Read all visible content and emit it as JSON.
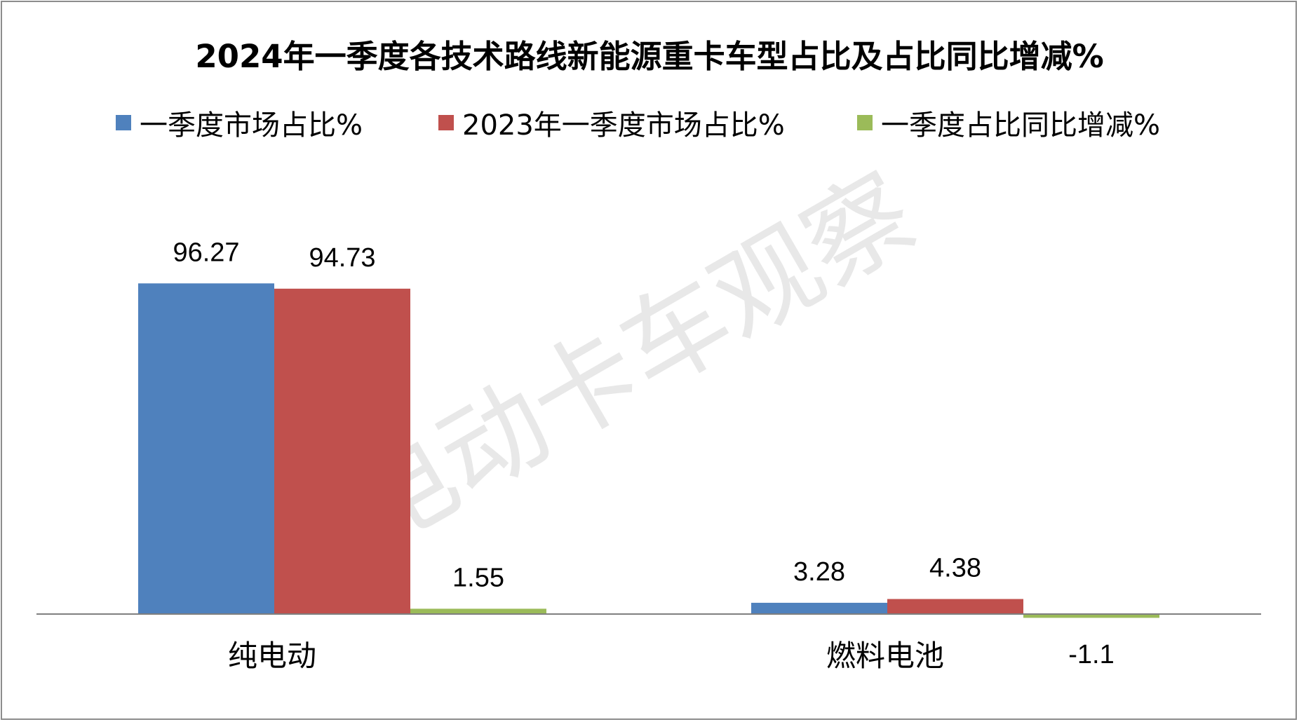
{
  "colors": {
    "series_1": "#4f81bd",
    "series_2": "#c0504d",
    "series_3": "#9bbb59",
    "axis": "#7f7f7f",
    "watermark": "#d6d6d6"
  },
  "watermark": "电动卡车观察",
  "chart_data": {
    "type": "bar",
    "title": "2024年一季度各技术路线新能源重卡车型占比及占比同比增减%",
    "categories": [
      "纯电动",
      "燃料电池"
    ],
    "series": [
      {
        "name": "一季度市场占比%",
        "values": [
          96.27,
          3.28
        ],
        "labels": [
          "96.27",
          "3.28"
        ]
      },
      {
        "name": "2023年一季度市场占比%",
        "values": [
          94.73,
          4.38
        ],
        "labels": [
          "94.73",
          "4.38"
        ]
      },
      {
        "name": "一季度占比同比增减%",
        "values": [
          1.55,
          -1.1
        ],
        "labels": [
          "1.55",
          "-1.1"
        ]
      }
    ],
    "xlabel": "",
    "ylabel": "",
    "ylim": [
      -2,
      100
    ],
    "grid": false,
    "legend_position": "top"
  }
}
